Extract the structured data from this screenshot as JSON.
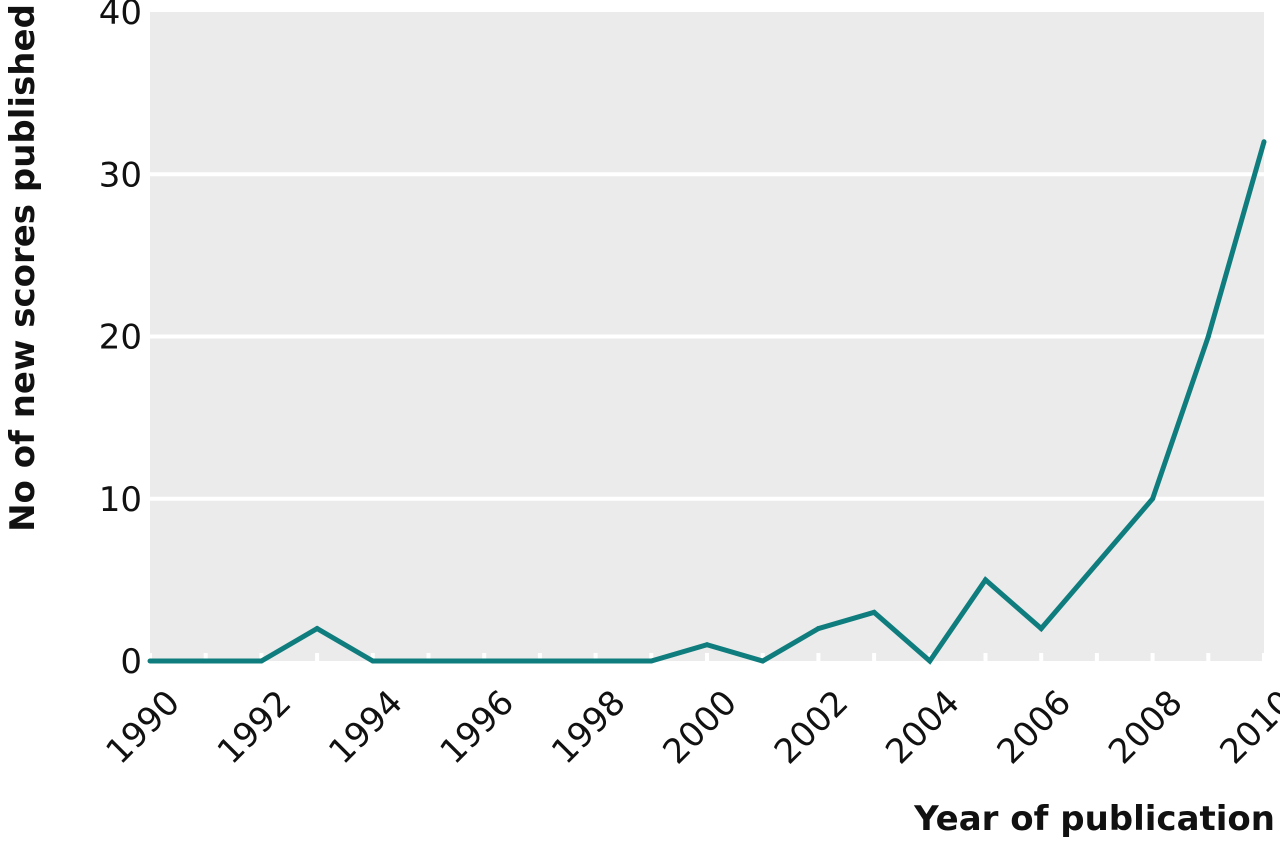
{
  "chart_data": {
    "type": "line",
    "xlabel": "Year of publication",
    "ylabel": "No of new scores published",
    "x": [
      1990,
      1991,
      1992,
      1993,
      1994,
      1995,
      1996,
      1997,
      1998,
      1999,
      2000,
      2001,
      2002,
      2003,
      2004,
      2005,
      2006,
      2007,
      2008,
      2009,
      2010
    ],
    "series": [
      {
        "values": [
          0,
          0,
          0,
          2,
          0,
          0,
          0,
          0,
          0,
          0,
          1,
          0,
          2,
          3,
          0,
          5,
          2,
          6,
          10,
          20,
          32
        ]
      }
    ],
    "xlim": [
      1990,
      2010
    ],
    "ylim": [
      0,
      40
    ],
    "x_tick_labels": [
      "1990",
      "1992",
      "1994",
      "1996",
      "1998",
      "2000",
      "2002",
      "2004",
      "2006",
      "2008",
      "2010"
    ],
    "y_tick_labels": [
      "0",
      "10",
      "20",
      "30",
      "40"
    ],
    "grid": "horizontal",
    "line_color": "#0f7d7e",
    "background_color": "#ebebeb"
  }
}
